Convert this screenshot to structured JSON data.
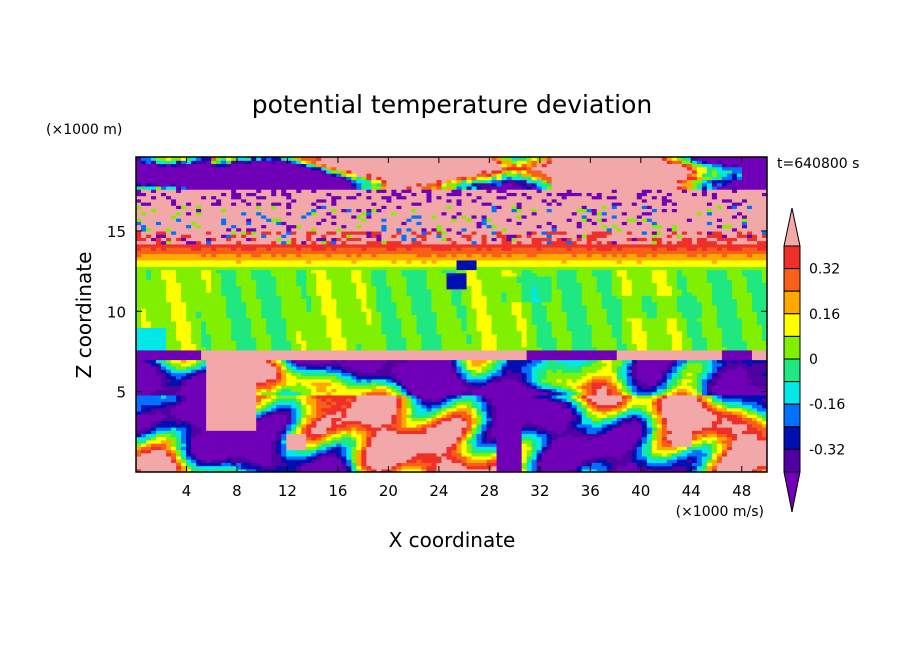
{
  "chart_data": {
    "type": "heatmap",
    "title": "potential temperature deviation",
    "xlabel": "X coordinate",
    "ylabel": "Z coordinate",
    "x_unit": "(×1000 m/s)",
    "y_unit": "(×1000 m)",
    "time_label": "t=640800 s",
    "xlim": [
      0,
      50
    ],
    "ylim": [
      0,
      19.6
    ],
    "x_ticks": [
      4,
      8,
      12,
      16,
      20,
      24,
      28,
      32,
      36,
      40,
      44,
      48
    ],
    "y_ticks": [
      5,
      10,
      15
    ],
    "colorbar": {
      "tick_labels": [
        "0.32",
        "0.16",
        "0",
        "-0.16",
        "-0.32"
      ],
      "tick_values": [
        0.32,
        0.16,
        0,
        -0.16,
        -0.32
      ],
      "levels": [
        {
          "lo": 0.4,
          "hi": null,
          "color": "#f2a8a8"
        },
        {
          "lo": 0.32,
          "hi": 0.4,
          "color": "#f03028"
        },
        {
          "lo": 0.24,
          "hi": 0.32,
          "color": "#f86018"
        },
        {
          "lo": 0.16,
          "hi": 0.24,
          "color": "#ffa800"
        },
        {
          "lo": 0.08,
          "hi": 0.16,
          "color": "#ffff00"
        },
        {
          "lo": 0.0,
          "hi": 0.08,
          "color": "#80f000"
        },
        {
          "lo": -0.08,
          "hi": 0.0,
          "color": "#20e880"
        },
        {
          "lo": -0.16,
          "hi": -0.08,
          "color": "#00e8e8"
        },
        {
          "lo": -0.24,
          "hi": -0.16,
          "color": "#0070ff"
        },
        {
          "lo": -0.32,
          "hi": -0.24,
          "color": "#0010b0"
        },
        {
          "lo": -0.4,
          "hi": -0.32,
          "color": "#5000a0"
        },
        {
          "lo": null,
          "hi": -0.4,
          "color": "#7000b8"
        }
      ]
    },
    "layers": [
      {
        "z": [
          17.5,
          19.6
        ],
        "pattern": "stratosphere",
        "dominant": [
          "#7000b8",
          "#f2a8a8"
        ]
      },
      {
        "z": [
          14.2,
          17.5
        ],
        "pattern": "noisy",
        "dominant": [
          "#f2a8a8",
          "#f03028",
          "#f86018"
        ]
      },
      {
        "z": [
          12.7,
          14.2
        ],
        "pattern": "bands",
        "dominant": [
          "#f03028",
          "#f86018",
          "#ffa800",
          "#ffff00"
        ]
      },
      {
        "z": [
          7.6,
          12.7
        ],
        "pattern": "uniform",
        "dominant": [
          "#80f000",
          "#20e880"
        ]
      },
      {
        "z": [
          6.9,
          7.6
        ],
        "pattern": "inversion",
        "dominant": [
          "#f2a8a8",
          "#7000b8"
        ]
      },
      {
        "z": [
          0,
          6.9
        ],
        "pattern": "convective",
        "dominant": [
          "#7000b8",
          "#0070ff",
          "#00e8e8",
          "#80f000",
          "#ffa800",
          "#f2a8a8"
        ]
      }
    ]
  }
}
